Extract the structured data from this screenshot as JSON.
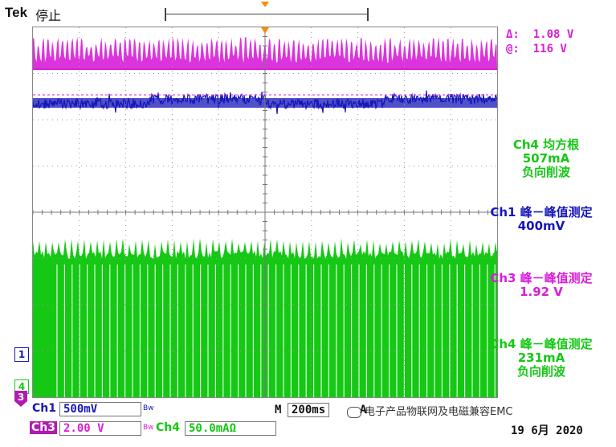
{
  "header": {
    "brand": "Tek",
    "run_state": "停止"
  },
  "colors": {
    "ch1": "#1616b8",
    "ch3": "#d81ed8",
    "ch4": "#14c814",
    "trigger": "#ff8c00"
  },
  "cursor": {
    "delta_label": "Δ:",
    "delta_value": "1.08 V",
    "at_label": "@:",
    "at_value": "116 V"
  },
  "measurements": [
    {
      "line1": "Ch4 均方根",
      "line2": "507mA",
      "line3": "负向削波"
    },
    {
      "line1": "Ch1 峰－峰值测定",
      "line2": "400mV",
      "line3": ""
    },
    {
      "line1": "Ch3 峰－峰值测定",
      "line2": "1.92 V",
      "line3": ""
    },
    {
      "line1": "Ch4 峰－峰值测定",
      "line2": "231mA",
      "line3": "负向削波"
    }
  ],
  "markers": {
    "ch1": "1",
    "ch4": "4",
    "ch3": "3"
  },
  "channels": {
    "ch1": {
      "label": "Ch1",
      "scale": "500mV",
      "bw": "Bw"
    },
    "ch3": {
      "label": "Ch3",
      "scale": "2.00 V",
      "bw": "Bw"
    },
    "ch4": {
      "label": "Ch4",
      "scale": "50.0mAΩ"
    }
  },
  "timebase": {
    "label": "M",
    "value": "200ms",
    "trigger_src": "A"
  },
  "date": "19 6月  2020",
  "watermark": "电子产品物联网及电磁兼容EMC"
}
